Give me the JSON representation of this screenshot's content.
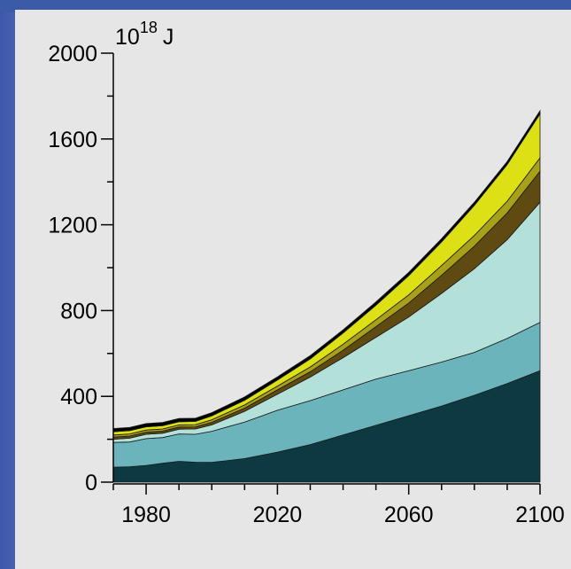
{
  "chart_data": {
    "type": "area",
    "stacked": true,
    "unit_label": {
      "base": "10",
      "exp": "18",
      "suffix": "J"
    },
    "xlim": [
      1970,
      2100
    ],
    "ylim": [
      0,
      2000
    ],
    "xticks": [
      1980,
      2020,
      2060,
      2100
    ],
    "yticks": [
      0,
      400,
      800,
      1200,
      1600,
      2000
    ],
    "x": [
      1970,
      1975,
      1980,
      1985,
      1990,
      1995,
      2000,
      2010,
      2020,
      2030,
      2040,
      2050,
      2060,
      2070,
      2080,
      2090,
      2100
    ],
    "series": [
      {
        "color": "#0d3a42",
        "values": [
          70,
          72,
          78,
          88,
          97,
          93,
          92,
          110,
          140,
          175,
          220,
          265,
          310,
          355,
          405,
          460,
          520
        ]
      },
      {
        "color": "#6bb4bc",
        "values": [
          115,
          115,
          125,
          120,
          128,
          130,
          145,
          170,
          195,
          205,
          210,
          215,
          210,
          205,
          200,
          210,
          225
        ]
      },
      {
        "color": "#b4e0da",
        "values": [
          15,
          18,
          20,
          20,
          22,
          25,
          30,
          50,
          75,
          110,
          150,
          195,
          250,
          320,
          390,
          460,
          560
        ]
      },
      {
        "color": "#5f4a12",
        "values": [
          10,
          10,
          10,
          10,
          10,
          10,
          12,
          15,
          20,
          25,
          35,
          50,
          65,
          85,
          105,
          125,
          145
        ]
      },
      {
        "color": "#a8a018",
        "values": [
          10,
          10,
          10,
          10,
          10,
          10,
          12,
          15,
          18,
          22,
          28,
          32,
          38,
          45,
          50,
          55,
          62
        ]
      },
      {
        "color": "#dce014",
        "values": [
          15,
          15,
          15,
          15,
          15,
          15,
          18,
          22,
          28,
          38,
          52,
          68,
          90,
          110,
          140,
          170,
          205
        ]
      },
      {
        "color": "#000000",
        "values": [
          15,
          15,
          15,
          15,
          15,
          15,
          15,
          15,
          15,
          15,
          15,
          15,
          15,
          15,
          15,
          15,
          15
        ]
      }
    ],
    "grid": false
  }
}
